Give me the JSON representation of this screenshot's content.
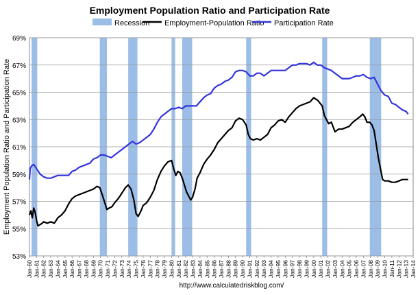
{
  "chart_data": {
    "type": "line",
    "title": "Employment Population Ratio and Participation Rate",
    "ylabel": "Employment Population Ratio and Participation Rate",
    "xlabel": "",
    "source": "http://www.calculatedriskblog.com/",
    "ylim": [
      53,
      69
    ],
    "xlim": [
      1960.0,
      2014.0
    ],
    "y_ticks": [
      "53%",
      "55%",
      "57%",
      "59%",
      "61%",
      "63%",
      "65%",
      "67%",
      "69%"
    ],
    "x_ticks": [
      "Jan-60",
      "Jan-61",
      "Jan-62",
      "Jan-63",
      "Jan-64",
      "Jan-65",
      "Jan-66",
      "Jan-67",
      "Jan-68",
      "Jan-69",
      "Jan-70",
      "Jan-71",
      "Jan-72",
      "Jan-73",
      "Jan-74",
      "Jan-75",
      "Jan-76",
      "Jan-77",
      "Jan-78",
      "Jan-79",
      "Jan-80",
      "Jan-81",
      "Jan-82",
      "Jan-83",
      "Jan-84",
      "Jan-85",
      "Jan-86",
      "Jan-87",
      "Jan-88",
      "Jan-89",
      "Jan-90",
      "Jan-91",
      "Jan-92",
      "Jan-93",
      "Jan-94",
      "Jan-95",
      "Jan-96",
      "Jan-97",
      "Jan-98",
      "Jan-99",
      "Jan-00",
      "Jan-01",
      "Jan-02",
      "Jan-03",
      "Jan-04",
      "Jan-05",
      "Jan-06",
      "Jan-07",
      "Jan-08",
      "Jan-09",
      "Jan-10",
      "Jan-11",
      "Jan-12",
      "Jan-13",
      "Jan-14"
    ],
    "grid": true,
    "legend_position": "top",
    "recessions": [
      [
        1960.3,
        1961.1
      ],
      [
        1969.9,
        1970.9
      ],
      [
        1973.9,
        1975.2
      ],
      [
        1980.0,
        1980.5
      ],
      [
        1981.5,
        1982.9
      ],
      [
        1990.5,
        1991.2
      ],
      [
        2001.2,
        2001.9
      ],
      [
        2007.9,
        2009.5
      ]
    ],
    "series": [
      {
        "name": "Recession",
        "kind": "band",
        "color": "#9bbde6"
      },
      {
        "name": "Employment-Population Ratio",
        "kind": "line",
        "color": "#000000",
        "x": [
          1960.0,
          1960.2,
          1960.4,
          1960.6,
          1960.8,
          1961.0,
          1961.2,
          1961.5,
          1961.8,
          1962.0,
          1962.5,
          1963.0,
          1963.5,
          1964.0,
          1964.5,
          1965.0,
          1965.5,
          1966.0,
          1966.5,
          1967.0,
          1967.5,
          1968.0,
          1968.5,
          1969.0,
          1969.5,
          1969.9,
          1970.3,
          1970.6,
          1970.9,
          1971.2,
          1971.6,
          1972.0,
          1972.5,
          1973.0,
          1973.5,
          1973.9,
          1974.3,
          1974.7,
          1975.0,
          1975.3,
          1975.7,
          1976.0,
          1976.5,
          1977.0,
          1977.5,
          1978.0,
          1978.5,
          1979.0,
          1979.5,
          1980.0,
          1980.3,
          1980.6,
          1980.9,
          1981.2,
          1981.5,
          1981.8,
          1982.1,
          1982.4,
          1982.7,
          1982.95,
          1983.3,
          1983.6,
          1984.0,
          1984.5,
          1985.0,
          1985.5,
          1986.0,
          1986.5,
          1987.0,
          1987.5,
          1988.0,
          1988.5,
          1989.0,
          1989.5,
          1990.0,
          1990.5,
          1990.8,
          1991.1,
          1991.5,
          1992.0,
          1992.5,
          1993.0,
          1993.5,
          1994.0,
          1994.5,
          1995.0,
          1995.5,
          1996.0,
          1996.5,
          1997.0,
          1997.5,
          1998.0,
          1998.5,
          1999.0,
          1999.5,
          2000.0,
          2000.3,
          2000.6,
          2000.9,
          2001.2,
          2001.5,
          2001.8,
          2002.1,
          2002.5,
          2003.0,
          2003.5,
          2004.0,
          2004.5,
          2005.0,
          2005.5,
          2006.0,
          2006.5,
          2006.9,
          2007.2,
          2007.5,
          2007.9,
          2008.2,
          2008.5,
          2008.8,
          2009.1,
          2009.4,
          2009.7,
          2010.0,
          2010.5,
          2011.0,
          2011.5,
          2012.0,
          2012.5,
          2013.0,
          2013.3
        ],
        "y": [
          56.0,
          56.3,
          55.8,
          56.5,
          56.2,
          55.6,
          55.2,
          55.3,
          55.4,
          55.5,
          55.4,
          55.5,
          55.4,
          55.8,
          56.0,
          56.3,
          56.8,
          57.2,
          57.4,
          57.5,
          57.6,
          57.7,
          57.8,
          57.9,
          58.1,
          58.0,
          57.4,
          56.9,
          56.4,
          56.5,
          56.6,
          56.9,
          57.2,
          57.6,
          58.0,
          58.2,
          57.9,
          57.1,
          56.1,
          55.9,
          56.3,
          56.7,
          56.9,
          57.3,
          57.8,
          58.6,
          59.2,
          59.6,
          59.9,
          60.0,
          59.4,
          58.9,
          59.2,
          59.1,
          58.7,
          58.2,
          57.7,
          57.4,
          57.1,
          57.3,
          57.9,
          58.7,
          59.1,
          59.7,
          60.1,
          60.4,
          60.8,
          61.3,
          61.6,
          61.9,
          62.2,
          62.4,
          62.9,
          63.1,
          63.0,
          62.6,
          61.9,
          61.6,
          61.5,
          61.6,
          61.5,
          61.7,
          61.9,
          62.4,
          62.6,
          62.9,
          63.0,
          62.8,
          63.2,
          63.5,
          63.8,
          64.0,
          64.1,
          64.2,
          64.3,
          64.6,
          64.5,
          64.4,
          64.2,
          64.0,
          63.3,
          63.0,
          62.7,
          62.8,
          62.1,
          62.3,
          62.3,
          62.4,
          62.5,
          62.8,
          63.0,
          63.2,
          63.4,
          63.2,
          62.8,
          62.8,
          62.6,
          62.2,
          61.2,
          60.2,
          59.4,
          58.6,
          58.5,
          58.5,
          58.4,
          58.4,
          58.5,
          58.6,
          58.6,
          58.6
        ]
      },
      {
        "name": "Participation Rate",
        "kind": "line",
        "color": "#3333dd",
        "x": [
          1960.0,
          1960.1,
          1960.3,
          1960.6,
          1961.0,
          1961.5,
          1962.0,
          1962.5,
          1963.0,
          1963.5,
          1964.0,
          1964.5,
          1965.0,
          1965.5,
          1966.0,
          1966.5,
          1967.0,
          1967.5,
          1968.0,
          1968.5,
          1969.0,
          1969.5,
          1970.0,
          1970.5,
          1971.0,
          1971.5,
          1972.0,
          1972.5,
          1973.0,
          1973.5,
          1974.0,
          1974.5,
          1975.0,
          1975.5,
          1976.0,
          1976.5,
          1977.0,
          1977.5,
          1978.0,
          1978.5,
          1979.0,
          1979.5,
          1980.0,
          1980.5,
          1981.0,
          1981.5,
          1982.0,
          1982.5,
          1983.0,
          1983.5,
          1984.0,
          1984.5,
          1985.0,
          1985.5,
          1986.0,
          1986.5,
          1987.0,
          1987.5,
          1988.0,
          1988.5,
          1989.0,
          1989.5,
          1990.0,
          1990.5,
          1991.0,
          1991.5,
          1992.0,
          1992.5,
          1993.0,
          1993.5,
          1994.0,
          1994.5,
          1995.0,
          1995.5,
          1996.0,
          1996.5,
          1997.0,
          1997.5,
          1998.0,
          1998.5,
          1999.0,
          1999.5,
          2000.0,
          2000.5,
          2001.0,
          2001.5,
          2002.0,
          2002.5,
          2003.0,
          2003.5,
          2004.0,
          2004.5,
          2005.0,
          2005.5,
          2006.0,
          2006.5,
          2007.0,
          2007.5,
          2008.0,
          2008.5,
          2009.0,
          2009.5,
          2010.0,
          2010.5,
          2011.0,
          2011.5,
          2012.0,
          2012.5,
          2013.0,
          2013.3
        ],
        "y": [
          58.6,
          59.4,
          59.6,
          59.7,
          59.4,
          59.0,
          58.8,
          58.7,
          58.7,
          58.8,
          58.9,
          58.9,
          58.9,
          58.9,
          59.2,
          59.3,
          59.5,
          59.6,
          59.7,
          59.8,
          60.1,
          60.2,
          60.4,
          60.4,
          60.3,
          60.2,
          60.4,
          60.6,
          60.8,
          61.0,
          61.2,
          61.4,
          61.2,
          61.3,
          61.5,
          61.7,
          61.9,
          62.3,
          62.8,
          63.2,
          63.4,
          63.6,
          63.8,
          63.8,
          63.9,
          63.8,
          64.0,
          64.0,
          64.0,
          64.0,
          64.3,
          64.6,
          64.8,
          64.9,
          65.3,
          65.5,
          65.6,
          65.8,
          65.9,
          66.1,
          66.5,
          66.6,
          66.6,
          66.5,
          66.2,
          66.2,
          66.4,
          66.4,
          66.2,
          66.4,
          66.6,
          66.6,
          66.6,
          66.6,
          66.6,
          66.8,
          67.0,
          67.0,
          67.1,
          67.1,
          67.1,
          67.0,
          67.2,
          67.0,
          67.0,
          66.8,
          66.7,
          66.6,
          66.4,
          66.2,
          66.0,
          66.0,
          66.0,
          66.1,
          66.2,
          66.2,
          66.3,
          66.1,
          66.0,
          66.1,
          65.6,
          65.1,
          64.8,
          64.7,
          64.2,
          64.1,
          63.9,
          63.7,
          63.6,
          63.4
        ]
      }
    ]
  }
}
